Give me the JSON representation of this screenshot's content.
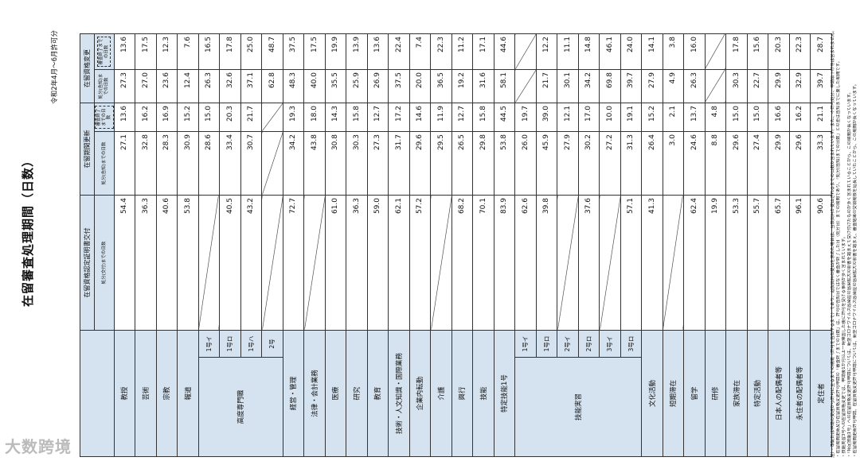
{
  "header": {
    "title": "在留審査処理期間（日数）",
    "subtitle": "令和2年4月～6月許可分"
  },
  "table": {
    "columns": [
      {
        "group": "在留資格認定証明書交付",
        "subs": [
          "処分(交付)までの日数"
        ]
      },
      {
        "group": "在留期間更新",
        "subs": [
          "処分(告知)までの日数",
          "審査終了までの日数"
        ]
      },
      {
        "group": "在留資格変更",
        "subs": [
          "処分(告知)までの日数",
          "審査終了までの日数"
        ]
      }
    ],
    "rows": [
      {
        "label": "教授",
        "values": [
          "54.4",
          "27.1",
          "13.6",
          "27.3",
          "13.6"
        ]
      },
      {
        "label": "芸術",
        "values": [
          "36.3",
          "32.8",
          "16.2",
          "27.0",
          "17.5"
        ]
      },
      {
        "label": "宗教",
        "values": [
          "40.6",
          "28.3",
          "16.9",
          "23.6",
          "12.3"
        ]
      },
      {
        "label": "報道",
        "values": [
          "53.8",
          "30.9",
          "15.2",
          "12.4",
          "7.6"
        ]
      },
      {
        "label": "高度専門職",
        "subrows": [
          {
            "label": "1号イ",
            "values": [
              null,
              "28.6",
              "15.0",
              "26.3",
              "16.5"
            ]
          },
          {
            "label": "1号ロ",
            "values": [
              "40.5",
              "33.4",
              "20.3",
              "32.6",
              "17.8"
            ]
          },
          {
            "label": "1号ハ",
            "values": [
              "43.2",
              "30.7",
              "21.7",
              "37.1",
              "25.0"
            ]
          },
          {
            "label": "2号",
            "values": [
              null,
              null,
              null,
              "62.8",
              "48.7"
            ]
          }
        ]
      },
      {
        "label": "経営・管理",
        "values": [
          "72.7",
          "34.2",
          "19.3",
          "48.3",
          "37.5"
        ]
      },
      {
        "label": "法律・会計業務",
        "values": [
          null,
          "43.8",
          "18.0",
          "40.0",
          "17.5"
        ]
      },
      {
        "label": "医療",
        "values": [
          "61.0",
          "30.8",
          "14.3",
          "35.5",
          "19.9"
        ]
      },
      {
        "label": "研究",
        "values": [
          "36.3",
          "30.3",
          "15.8",
          "25.9",
          "13.9"
        ]
      },
      {
        "label": "教育",
        "values": [
          "59.0",
          "27.3",
          "12.7",
          "26.9",
          "13.6"
        ]
      },
      {
        "label": "技術・人文知識・国際業務",
        "values": [
          "62.1",
          "31.7",
          "17.2",
          "37.5",
          "22.4"
        ]
      },
      {
        "label": "企業内転勤",
        "values": [
          "57.2",
          "29.6",
          "14.6",
          "20.0",
          "7.4"
        ]
      },
      {
        "label": "介護",
        "values": [
          null,
          "29.5",
          "11.9",
          "36.5",
          "22.3"
        ]
      },
      {
        "label": "興行",
        "values": [
          "68.2",
          "26.5",
          "12.7",
          "19.2",
          "11.2"
        ]
      },
      {
        "label": "技能",
        "values": [
          "70.1",
          "29.8",
          "15.8",
          "31.6",
          "17.1"
        ]
      },
      {
        "label": "特定技能1号",
        "values": [
          "83.9",
          "53.8",
          "44.5",
          "58.1",
          "44.6"
        ]
      },
      {
        "label": "技能実習",
        "subrows": [
          {
            "label": "1号イ",
            "values": [
              "62.6",
              "26.0",
              "19.7",
              null,
              null
            ]
          },
          {
            "label": "1号ロ",
            "values": [
              "39.8",
              "45.9",
              "39.0",
              "21.7",
              "12.2"
            ]
          },
          {
            "label": "2号イ",
            "values": [
              null,
              "27.9",
              "12.1",
              "30.1",
              "11.1"
            ]
          },
          {
            "label": "2号ロ",
            "values": [
              "37.6",
              "30.2",
              "17.0",
              "34.2",
              "14.8"
            ]
          },
          {
            "label": "3号イ",
            "values": [
              null,
              "27.2",
              "10.0",
              "69.8",
              "46.1"
            ]
          },
          {
            "label": "3号ロ",
            "values": [
              "57.1",
              "31.3",
              "19.1",
              "39.7",
              "24.0"
            ]
          }
        ]
      },
      {
        "label": "文化活動",
        "values": [
          "41.3",
          "26.4",
          "15.2",
          "27.9",
          "14.1"
        ]
      },
      {
        "label": "短期滞在",
        "values": [
          null,
          "3.0",
          "2.1",
          "4.9",
          "3.8"
        ]
      },
      {
        "label": "留学",
        "values": [
          "62.4",
          "24.6",
          "13.7",
          "26.3",
          "16.0"
        ]
      },
      {
        "label": "研修",
        "values": [
          "19.9",
          "8.8",
          "4.8",
          null,
          null
        ]
      },
      {
        "label": "家族滞在",
        "values": [
          "53.3",
          "29.6",
          "15.0",
          "30.3",
          "17.8"
        ]
      },
      {
        "label": "特定活動",
        "values": [
          "55.7",
          "27.4",
          "15.0",
          "22.7",
          "15.6"
        ]
      },
      {
        "label": "日本人の配偶者等",
        "values": [
          "65.7",
          "29.9",
          "16.6",
          "29.9",
          "20.3"
        ]
      },
      {
        "label": "永住者の配偶者等",
        "values": [
          "96.1",
          "29.6",
          "16.2",
          "32.9",
          "22.3"
        ]
      },
      {
        "label": "定住者",
        "values": [
          "90.6",
          "33.3",
          "21.1",
          "39.7",
          "28.7"
        ]
      }
    ]
  },
  "notes": [
    "注）・本統計は申請の受理から許可に至るまでの期間（許可を告知するまで）であり、追加資料の提出を求めた場合は、当該資料が提出されるまでの日数が含まれています。また、不許可処分、申請取下げ等は含まれません。",
    "・在留期間更新及び在留資格変更許可申請の「審査終了までの日数」は、許可の告知日ではなく審査が終了した日（処分日）までの期間であり、「処分(告知)までの日数」との差は告知までに要した期間です。",
    "・技能実習3号への在留資格変更では、申請後1か月以上一時帰国した後に許可を受ける事例が多く含まれています。",
    "・「特定技能1号」への在留資格変更許可申請については、新型コロナウイルス感染症の感染拡大の影響を踏まえて受け付けたものが多く含まれていることから、この期間が長くなっています。",
    "・在留期間更新許可申請、在留資格変更許可申請については、新型コロナウイルス感染症の感染拡大の影響を踏まえ、審査結果の受領期限を延長していたことから、この期間が長くなっています。"
  ],
  "watermark": "大数跨境"
}
